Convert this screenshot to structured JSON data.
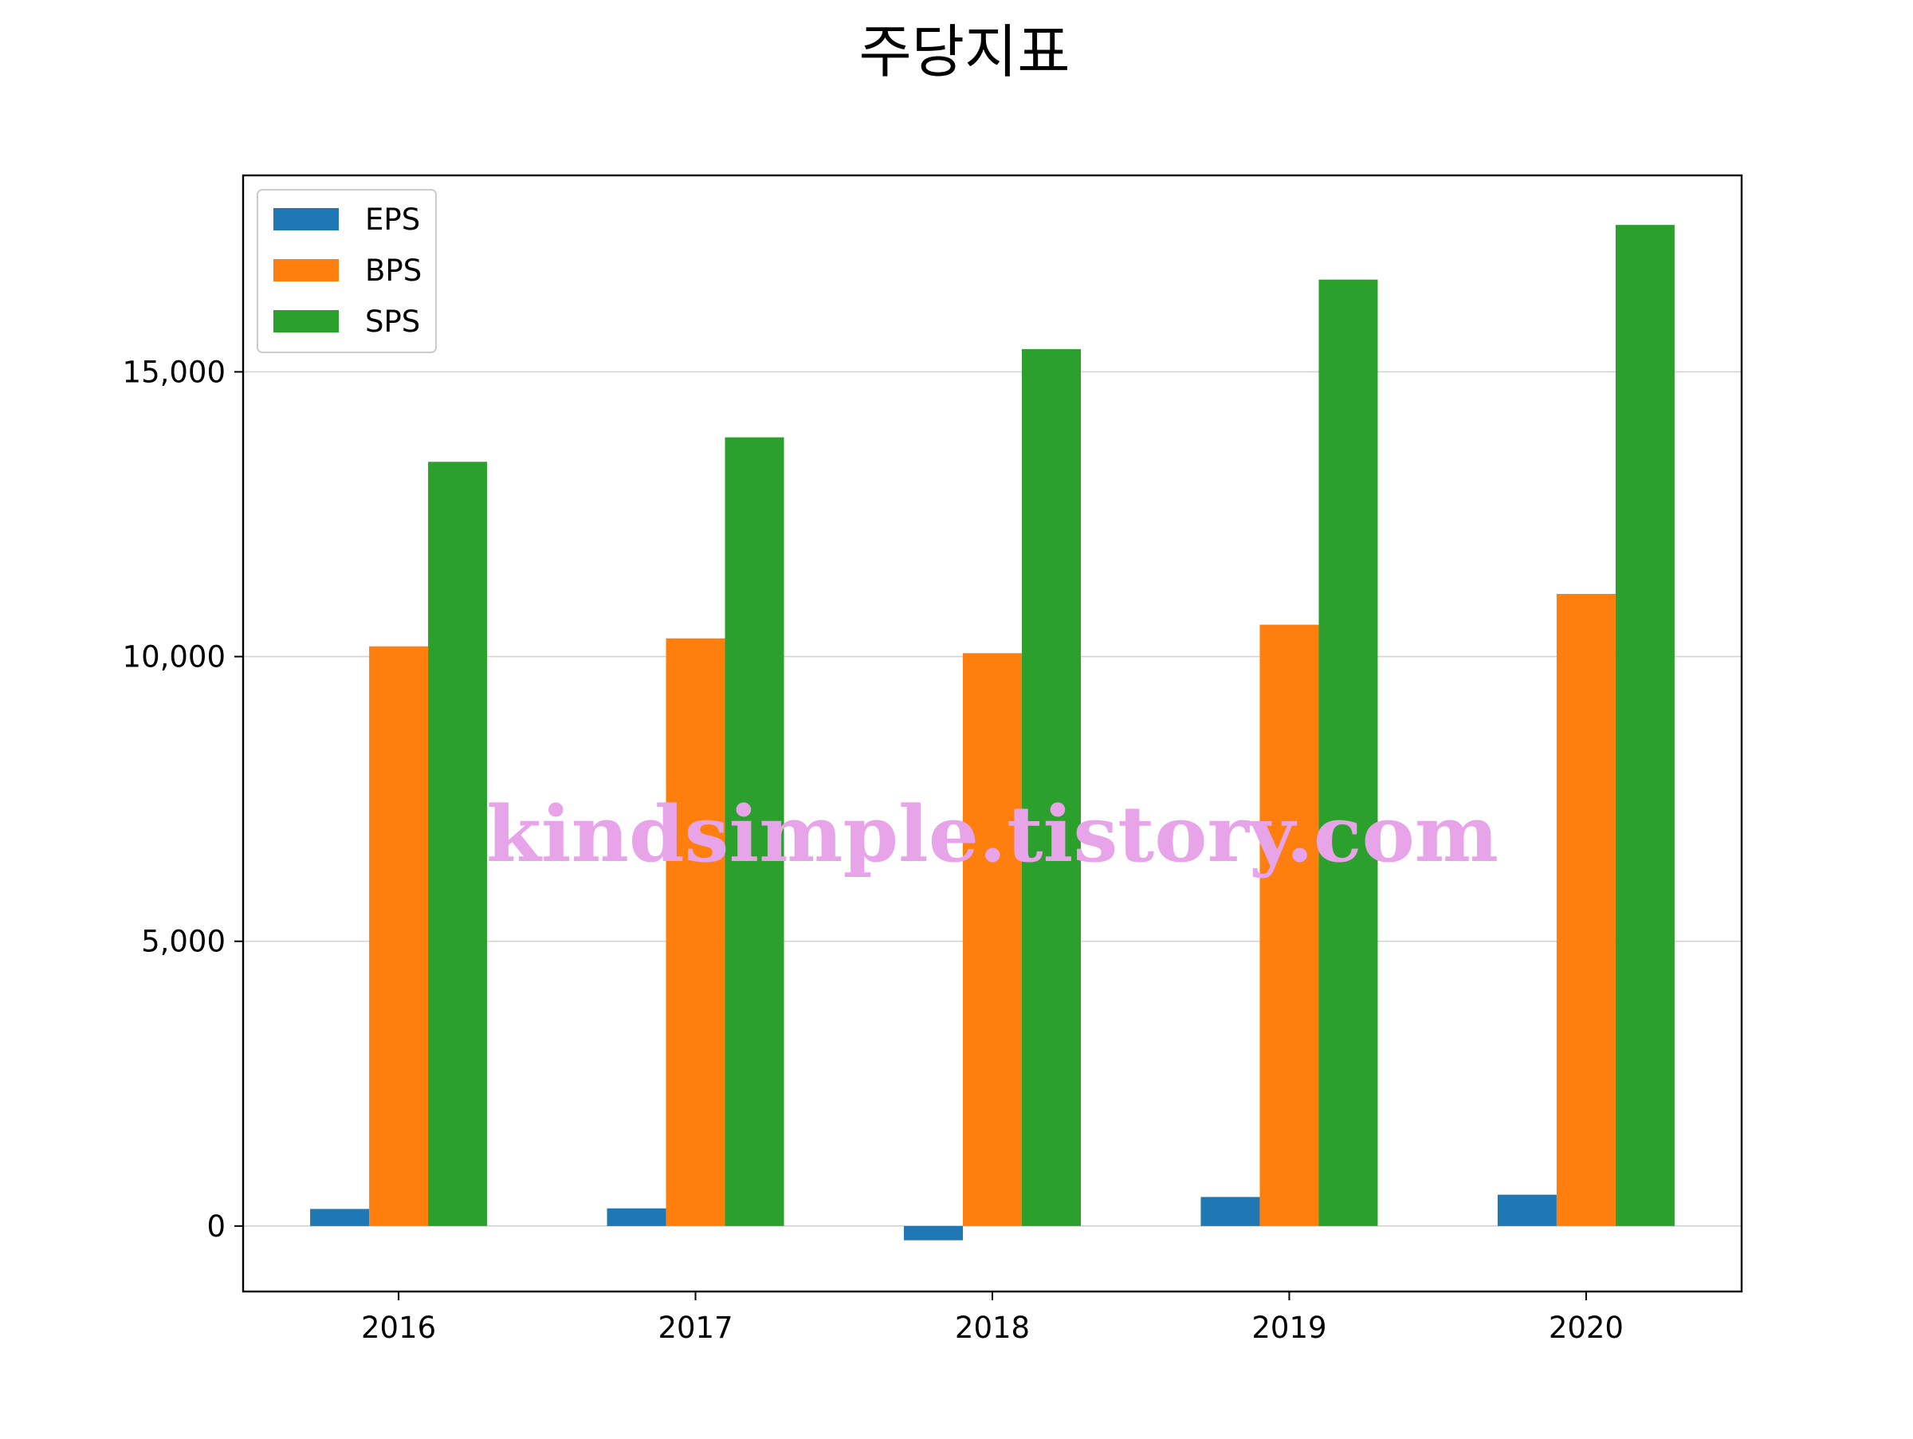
{
  "chart_data": {
    "type": "bar",
    "title": "주당지표",
    "xlabel": "",
    "ylabel": "",
    "categories": [
      "2016",
      "2017",
      "2018",
      "2019",
      "2020"
    ],
    "series": [
      {
        "name": "EPS",
        "color": "#1f77b4",
        "values": [
          300,
          310,
          -250,
          510,
          550
        ]
      },
      {
        "name": "BPS",
        "color": "#ff7f0e",
        "values": [
          10180,
          10320,
          10060,
          10560,
          11100
        ]
      },
      {
        "name": "SPS",
        "color": "#2ca02c",
        "values": [
          13420,
          13850,
          15400,
          16620,
          17580
        ]
      }
    ],
    "ylim": [
      -1150,
      18450
    ],
    "yticks": [
      0,
      5000,
      10000,
      15000
    ],
    "ytick_labels": [
      "0",
      "5,000",
      "10,000",
      "15,000"
    ],
    "grid": "y",
    "legend_position": "upper left"
  },
  "watermark": "kindsimple.tistory.com"
}
